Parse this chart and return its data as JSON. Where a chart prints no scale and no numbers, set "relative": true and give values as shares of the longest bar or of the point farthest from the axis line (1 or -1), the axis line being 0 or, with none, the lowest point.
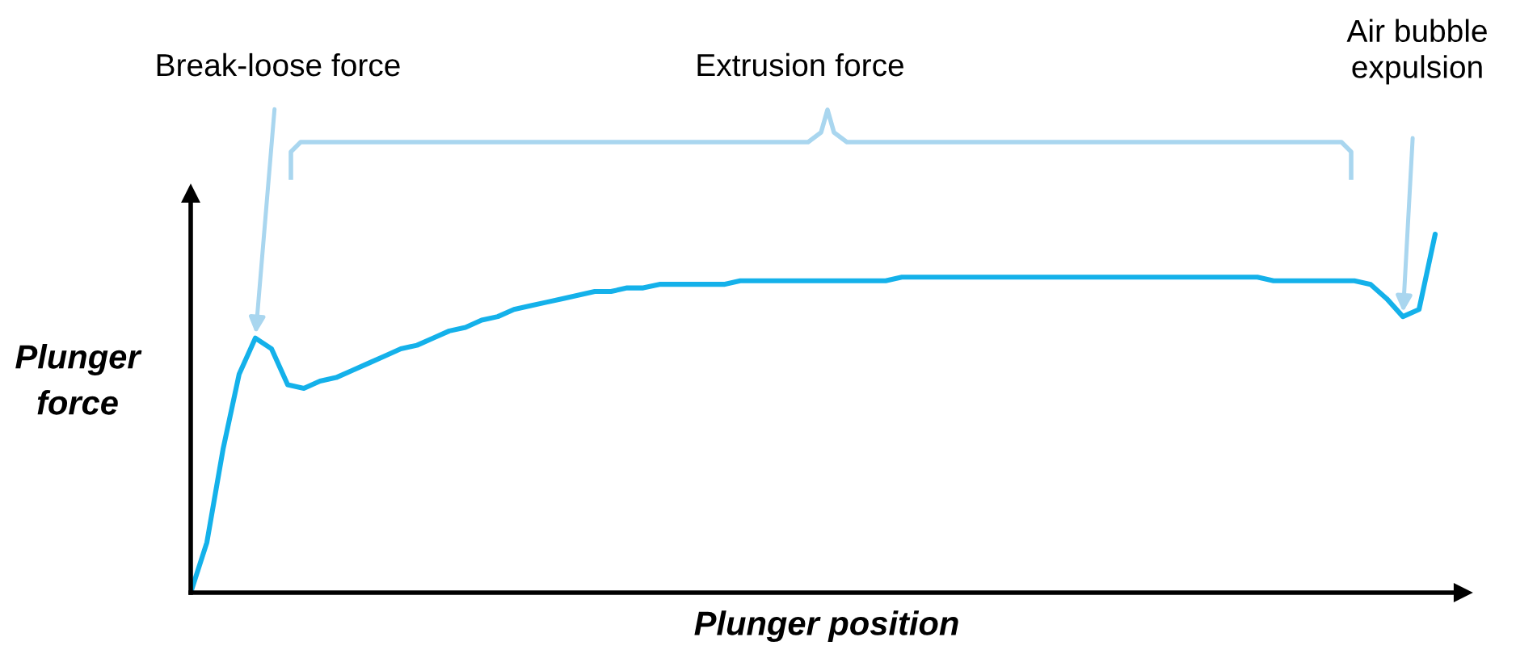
{
  "chart_data": {
    "type": "line",
    "relative": true,
    "xlabel": "Plunger position",
    "ylabel": "Plunger force",
    "color": "#14b1ea",
    "marker": "none",
    "line_style": "solid",
    "annotations": [
      "Break-loose force",
      "Extrusion force",
      "Air bubble\nexpulsion"
    ],
    "categories": [
      null,
      null,
      null,
      null,
      null,
      null,
      null,
      null,
      null,
      null,
      null,
      null,
      null,
      null,
      null,
      null,
      null,
      null,
      null,
      null,
      null,
      null,
      null,
      null,
      null,
      null,
      null,
      null,
      null,
      null,
      null,
      null,
      null,
      null,
      null,
      null,
      null,
      null,
      null,
      null,
      null,
      null,
      null,
      null,
      null,
      null,
      null,
      null,
      null,
      null,
      null,
      null,
      null,
      null,
      null,
      null,
      null,
      null,
      null,
      null,
      null,
      null,
      null,
      null,
      null,
      null,
      null,
      null,
      null,
      null,
      null,
      null,
      null,
      null,
      null,
      null,
      null,
      null
    ],
    "values": [
      0,
      0.14,
      0.4,
      0.61,
      0.71,
      0.68,
      0.58,
      0.57,
      0.59,
      0.6,
      0.62,
      0.64,
      0.66,
      0.68,
      0.69,
      0.71,
      0.73,
      0.74,
      0.76,
      0.77,
      0.79,
      0.8,
      0.81,
      0.82,
      0.83,
      0.84,
      0.84,
      0.85,
      0.85,
      0.86,
      0.86,
      0.86,
      0.86,
      0.86,
      0.87,
      0.87,
      0.87,
      0.87,
      0.87,
      0.87,
      0.87,
      0.87,
      0.87,
      0.87,
      0.88,
      0.88,
      0.88,
      0.88,
      0.88,
      0.88,
      0.88,
      0.88,
      0.88,
      0.88,
      0.88,
      0.88,
      0.88,
      0.88,
      0.88,
      0.88,
      0.88,
      0.88,
      0.88,
      0.88,
      0.88,
      0.88,
      0.88,
      0.87,
      0.87,
      0.87,
      0.87,
      0.87,
      0.87,
      0.86,
      0.82,
      0.77,
      0.79,
      1
    ]
  }
}
